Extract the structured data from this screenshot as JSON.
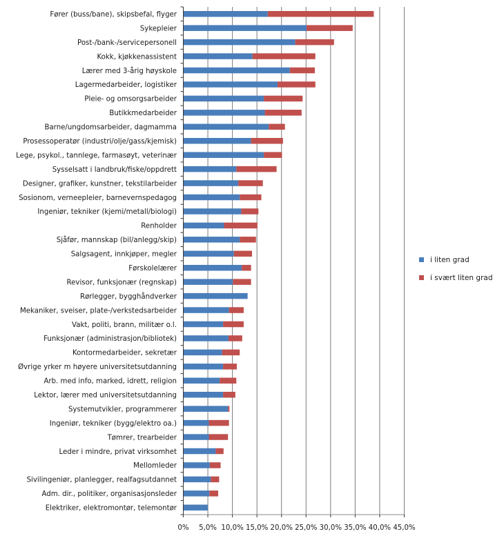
{
  "chart_data": {
    "type": "bar",
    "orientation": "horizontal",
    "stacked": true,
    "title": "",
    "xlabel": "",
    "ylabel": "",
    "xlim": [
      0,
      45
    ],
    "x_ticks": [
      "0%",
      "5,0%",
      "10,0%",
      "15,0%",
      "20,0%",
      "25,0%",
      "30,0%",
      "35,0%",
      "40,0%",
      "45,0%"
    ],
    "x_tick_values": [
      0,
      5,
      10,
      15,
      20,
      25,
      30,
      35,
      40,
      45
    ],
    "grid": "vertical",
    "legend_position": "right",
    "categories": [
      "Fører (buss/bane), skipsbefal, flyger",
      "Sykepleier",
      "Post-/bank-/servicepersonell",
      "Kokk, kjøkkenassistent",
      "Lærer med 3-årig høyskole",
      "Lagermedarbeider, logistiker",
      "Pleie- og omsorgsarbeider",
      "Butikkmedarbeider",
      "Barne/ungdomsarbeider, dagmamma",
      "Prosessoperatør  (industri/olje/gass/kjemisk)",
      "Lege, psykol., tannlege, farmasøyt, veterinær",
      "Sysselsatt i landbruk/fiske/oppdrett",
      "Designer, grafiker, kunstner, tekstilarbeider",
      "Sosionom, verneepleier, barnevernspedagog",
      "Ingeniør, tekniker  (kjemi/metall/biologi)",
      "Renholder",
      "Sjåfør, mannskap  (bil/anlegg/skip)",
      "Salgsagent, innkjøper, megler",
      "Førskolelærer",
      "Revisor, funksjonær  (regnskap)",
      "Rørlegger, bygghåndverker",
      "Mekaniker, sveiser, plate-/verkstedsarbeider",
      "Vakt, politi, brann, militær o.l.",
      "Funksjonær  (administrasjon/bibliotek)",
      "Kontormedarbeider, sekretær",
      "Øvrige yrker m høyere universitetsutdanning",
      "Arb. med info, marked, idrett, religion",
      "Lektor, lærer med universitetsutdanning",
      "Systemutvikler, programmerer",
      "Ingeniør, tekniker  (bygg/elektro oa.)",
      "Tømrer, trearbeider",
      "Leder i mindre, privat virksomhet",
      "Mellomleder",
      "Sivilingeniør, planlegger, realfagsutdannet",
      "Adm. dir., politiker, organisasjonsleder",
      "Elektriker, elektromontør, telemontør"
    ],
    "series": [
      {
        "name": "i liten grad",
        "color": "#4a7ebb",
        "values": [
          17.2,
          25.1,
          22.8,
          14.1,
          21.7,
          19.2,
          16.4,
          16.6,
          17.4,
          13.8,
          16.4,
          10.8,
          11.2,
          11.5,
          11.8,
          8.3,
          11.5,
          10.3,
          11.9,
          10.1,
          13.1,
          9.3,
          8.1,
          9.2,
          7.9,
          8.1,
          7.4,
          8.1,
          9.1,
          5.2,
          5.2,
          6.6,
          5.4,
          5.6,
          5.3,
          5.0
        ]
      },
      {
        "name": "i svært liten grad",
        "color": "#c0504d",
        "values": [
          21.6,
          9.4,
          7.9,
          12.8,
          5.1,
          7.7,
          7.9,
          7.5,
          3.3,
          6.5,
          3.7,
          8.2,
          5.0,
          4.4,
          3.5,
          6.8,
          3.3,
          3.7,
          1.9,
          3.7,
          0.0,
          3.0,
          4.2,
          2.8,
          3.6,
          2.8,
          3.4,
          2.5,
          0.3,
          4.1,
          3.9,
          1.6,
          2.2,
          1.7,
          1.8,
          0.0
        ]
      }
    ]
  }
}
